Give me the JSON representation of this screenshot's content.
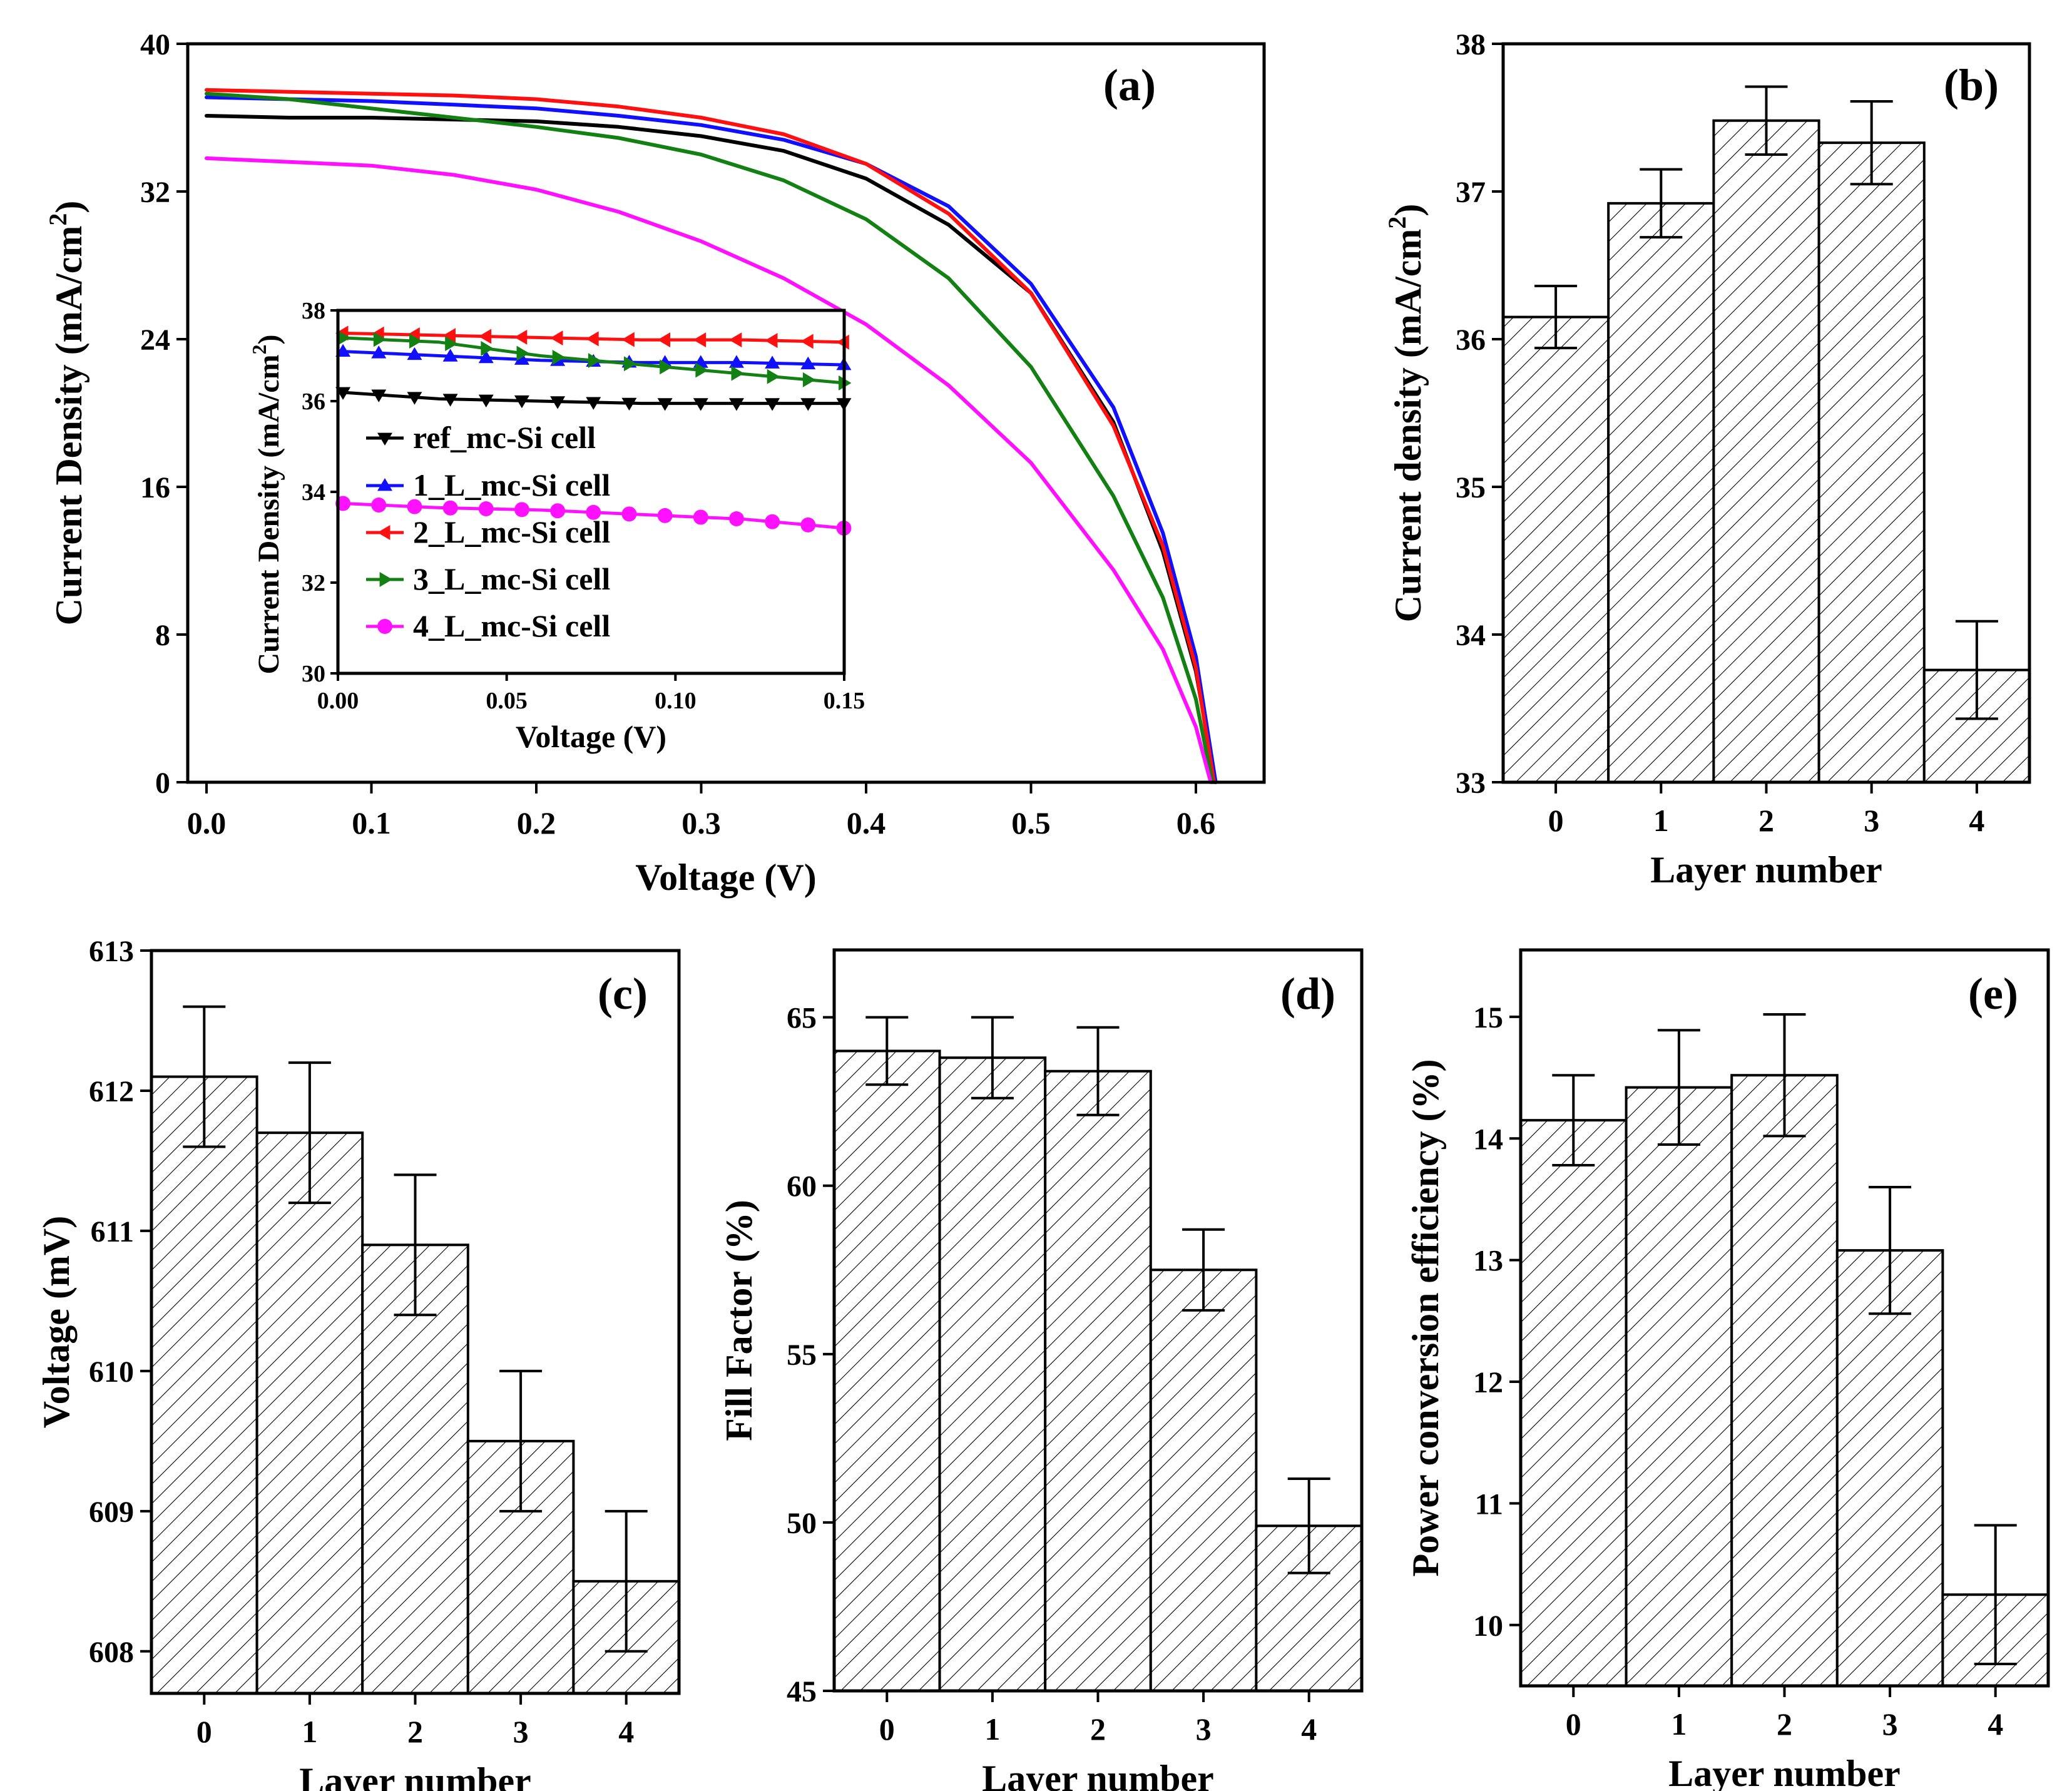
{
  "chart_data": [
    {
      "panel": "(a)",
      "type": "line",
      "xlabel": "Voltage (V)",
      "ylabel": "Current Density (mA/cm",
      "ylabel_sup": "2",
      "ylabel_close": ")",
      "xlim": [
        0.0,
        0.65
      ],
      "ylim": [
        0,
        40
      ],
      "xticks": [
        0.0,
        0.1,
        0.2,
        0.3,
        0.4,
        0.5,
        0.6
      ],
      "xtick_labels": [
        "0.0",
        "0.1",
        "0.2",
        "0.3",
        "0.4",
        "0.5",
        "0.6"
      ],
      "yticks": [
        0,
        8,
        16,
        24,
        32,
        40
      ],
      "ytick_labels": [
        "0",
        "8",
        "16",
        "24",
        "32",
        "40"
      ],
      "series": [
        {
          "name": "ref_mc-Si cell",
          "color": "#000000",
          "marker": "down-triangle",
          "x": [
            0,
            0.05,
            0.1,
            0.15,
            0.2,
            0.25,
            0.3,
            0.35,
            0.4,
            0.45,
            0.5,
            0.55,
            0.58,
            0.6,
            0.612
          ],
          "y": [
            36.1,
            36.0,
            36.0,
            35.9,
            35.8,
            35.5,
            35.0,
            34.2,
            32.7,
            30.2,
            26.5,
            19.5,
            12.5,
            6.0,
            0
          ]
        },
        {
          "name": "1_L_mc-Si cell",
          "color": "#1010ff",
          "marker": "up-triangle",
          "x": [
            0,
            0.05,
            0.1,
            0.15,
            0.2,
            0.25,
            0.3,
            0.35,
            0.4,
            0.45,
            0.5,
            0.55,
            0.58,
            0.6,
            0.612
          ],
          "y": [
            37.1,
            37.0,
            36.9,
            36.7,
            36.5,
            36.1,
            35.6,
            34.8,
            33.5,
            31.2,
            27.0,
            20.3,
            13.5,
            6.8,
            0
          ]
        },
        {
          "name": "2_L_mc-Si cell",
          "color": "#ff1010",
          "marker": "left-triangle",
          "x": [
            0,
            0.05,
            0.1,
            0.15,
            0.2,
            0.25,
            0.3,
            0.35,
            0.4,
            0.45,
            0.5,
            0.55,
            0.58,
            0.6,
            0.611
          ],
          "y": [
            37.5,
            37.4,
            37.3,
            37.2,
            37.0,
            36.6,
            36.0,
            35.1,
            33.5,
            30.8,
            26.5,
            19.3,
            12.8,
            6.2,
            0
          ]
        },
        {
          "name": "3_L_mc-Si cell",
          "color": "#128012",
          "marker": "right-triangle",
          "x": [
            0,
            0.05,
            0.1,
            0.15,
            0.2,
            0.25,
            0.3,
            0.35,
            0.4,
            0.45,
            0.5,
            0.55,
            0.58,
            0.6,
            0.61
          ],
          "y": [
            37.3,
            37.0,
            36.5,
            36.0,
            35.5,
            34.9,
            34.0,
            32.6,
            30.5,
            27.3,
            22.5,
            15.5,
            10.0,
            4.5,
            0
          ]
        },
        {
          "name": "4_L_mc-Si cell",
          "color": "#ff10ff",
          "marker": "circle",
          "x": [
            0,
            0.05,
            0.1,
            0.15,
            0.2,
            0.25,
            0.3,
            0.35,
            0.4,
            0.45,
            0.5,
            0.55,
            0.58,
            0.6,
            0.609
          ],
          "y": [
            33.8,
            33.6,
            33.4,
            32.9,
            32.1,
            30.9,
            29.3,
            27.3,
            24.8,
            21.5,
            17.3,
            11.5,
            7.2,
            3.0,
            0
          ]
        }
      ],
      "inset": {
        "xlabel": "Voltage (V)",
        "ylabel": "Current Density (mA/cm",
        "ylabel_sup": "2",
        "ylabel_close": ")",
        "xlim": [
          0.0,
          0.15
        ],
        "ylim": [
          30,
          38
        ],
        "xticks": [
          0.0,
          0.05,
          0.1,
          0.15
        ],
        "xtick_labels": [
          "0.00",
          "0.05",
          "0.10",
          "0.15"
        ],
        "yticks": [
          30,
          32,
          34,
          36,
          38
        ],
        "ytick_labels": [
          "30",
          "32",
          "34",
          "36",
          "38"
        ],
        "series": [
          {
            "name": "ref_mc-Si cell",
            "x": [
              0,
              0.03,
              0.06,
              0.09,
              0.12,
              0.15
            ],
            "y": [
              36.2,
              36.05,
              36.0,
              35.95,
              35.95,
              35.95
            ]
          },
          {
            "name": "1_L_mc-Si cell",
            "x": [
              0,
              0.03,
              0.06,
              0.09,
              0.12,
              0.15
            ],
            "y": [
              37.1,
              37.0,
              36.9,
              36.85,
              36.85,
              36.8
            ]
          },
          {
            "name": "2_L_mc-Si cell",
            "x": [
              0,
              0.03,
              0.06,
              0.09,
              0.12,
              0.15
            ],
            "y": [
              37.5,
              37.45,
              37.4,
              37.35,
              37.35,
              37.3
            ]
          },
          {
            "name": "3_L_mc-Si cell",
            "x": [
              0,
              0.03,
              0.06,
              0.09,
              0.12,
              0.15
            ],
            "y": [
              37.4,
              37.3,
              37.0,
              36.8,
              36.6,
              36.4
            ]
          },
          {
            "name": "4_L_mc-Si cell",
            "x": [
              0,
              0.03,
              0.06,
              0.09,
              0.12,
              0.15
            ],
            "y": [
              33.75,
              33.65,
              33.6,
              33.5,
              33.4,
              33.2
            ]
          }
        ]
      }
    },
    {
      "panel": "(b)",
      "type": "bar",
      "xlabel": "Layer number",
      "ylabel": "Current density (mA/cm",
      "ylabel_sup": "2",
      "ylabel_close": ")",
      "categories": [
        "0",
        "1",
        "2",
        "3",
        "4"
      ],
      "values": [
        36.15,
        36.92,
        37.48,
        37.33,
        33.76
      ],
      "errors": [
        0.21,
        0.23,
        0.23,
        0.28,
        0.33
      ],
      "ylim": [
        33,
        38
      ],
      "yticks": [
        33,
        34,
        35,
        36,
        37,
        38
      ],
      "ytick_labels": [
        "33",
        "34",
        "35",
        "36",
        "37",
        "38"
      ]
    },
    {
      "panel": "(c)",
      "type": "bar",
      "xlabel": "Layer number",
      "ylabel": "Voltage (mV)",
      "categories": [
        "0",
        "1",
        "2",
        "3",
        "4"
      ],
      "values": [
        612.1,
        611.7,
        610.9,
        609.5,
        608.5
      ],
      "errors": [
        0.5,
        0.5,
        0.5,
        0.5,
        0.5
      ],
      "ylim": [
        607.7,
        613
      ],
      "yticks": [
        608,
        609,
        610,
        611,
        612,
        613
      ],
      "ytick_labels": [
        "608",
        "609",
        "610",
        "611",
        "612",
        "613"
      ]
    },
    {
      "panel": "(d)",
      "type": "bar",
      "xlabel": "Layer number",
      "ylabel": "Fill Factor (%)",
      "categories": [
        "0",
        "1",
        "2",
        "3",
        "4"
      ],
      "values": [
        64.0,
        63.8,
        63.4,
        57.5,
        49.9
      ],
      "errors": [
        1.0,
        1.2,
        1.3,
        1.2,
        1.4
      ],
      "ylim": [
        45,
        67
      ],
      "yticks": [
        45,
        50,
        55,
        60,
        65
      ],
      "ytick_labels": [
        "45",
        "50",
        "55",
        "60",
        "65"
      ]
    },
    {
      "panel": "(e)",
      "type": "bar",
      "xlabel": "Layer number",
      "ylabel": "Power conversion efficiency (%)",
      "categories": [
        "0",
        "1",
        "2",
        "3",
        "4"
      ],
      "values": [
        14.15,
        14.42,
        14.52,
        13.08,
        10.25
      ],
      "errors": [
        0.37,
        0.47,
        0.5,
        0.52,
        0.57
      ],
      "ylim": [
        9.5,
        15.55
      ],
      "yticks": [
        10,
        11,
        12,
        13,
        14,
        15
      ],
      "ytick_labels": [
        "10",
        "11",
        "12",
        "13",
        "14",
        "15"
      ]
    }
  ]
}
